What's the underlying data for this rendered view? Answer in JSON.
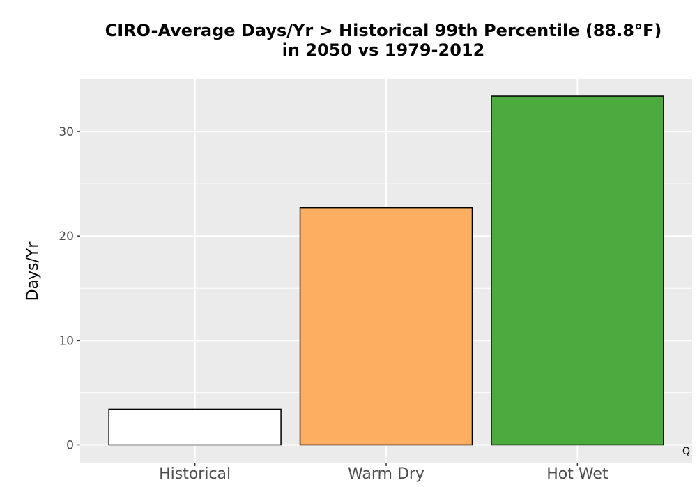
{
  "chart_data": {
    "type": "bar",
    "title_lines": [
      "CIRO-Average Days/Yr > Historical 99th Percentile (88.8°F)",
      "in 2050 vs 1979-2012"
    ],
    "xlabel": "",
    "ylabel": "Days/Yr",
    "categories": [
      "Historical",
      "Warm Dry",
      "Hot Wet"
    ],
    "values": [
      3.4,
      22.7,
      33.4
    ],
    "bar_colors": [
      "#ffffff",
      "#fdae61",
      "#4daa3f"
    ],
    "bar_outline": "#000000",
    "ylim": [
      -1.7,
      35
    ],
    "yticks": [
      0,
      10,
      20,
      30
    ],
    "grid": true,
    "panel_background": "#ebebeb",
    "gridline_color": "#ffffff",
    "corner_mark": "Q"
  }
}
